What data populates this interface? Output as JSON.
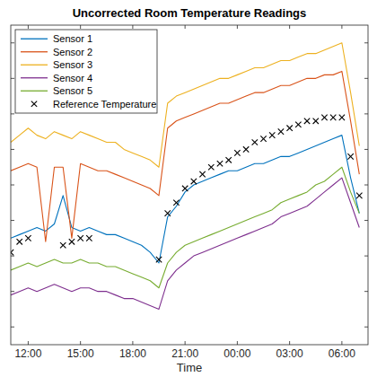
{
  "chart_data": {
    "type": "line",
    "title": "Uncorrected Room Temperature Readings",
    "x_label": "Time",
    "x": [
      11,
      11.5,
      12,
      12.5,
      13,
      13.5,
      14,
      14.5,
      15,
      15.5,
      16,
      16.5,
      17,
      17.5,
      18,
      18.5,
      19,
      19.5,
      20,
      20.5,
      21,
      21.5,
      22,
      22.5,
      23,
      23.5,
      24,
      24.5,
      25,
      25.5,
      26,
      26.5,
      27,
      27.5,
      28,
      28.5,
      29,
      29.5,
      30,
      30.5,
      31
    ],
    "xlim": [
      11,
      31.5
    ],
    "xticks": [
      {
        "value": 12,
        "label": "12:00"
      },
      {
        "value": 15,
        "label": "15:00"
      },
      {
        "value": 18,
        "label": "18:00"
      },
      {
        "value": 21,
        "label": "21:00"
      },
      {
        "value": 24,
        "label": "00:00"
      },
      {
        "value": 27,
        "label": "03:00"
      },
      {
        "value": 30,
        "label": "06:00"
      }
    ],
    "ylim": [
      16.5,
      25.5
    ],
    "yticks": [
      17,
      18,
      19,
      20,
      21,
      22,
      23,
      24,
      25
    ],
    "tick_labels": "x",
    "grid": false,
    "legend": "northwest",
    "series": [
      {
        "name": "Sensor 1",
        "color": "#0072bd",
        "values": [
          19.5,
          19.6,
          19.7,
          19.8,
          19.7,
          19.9,
          20.7,
          19.8,
          19.7,
          19.8,
          19.7,
          19.6,
          19.6,
          19.5,
          19.4,
          19.3,
          19.1,
          18.8,
          20.1,
          20.4,
          20.8,
          21.0,
          21.1,
          21.2,
          21.3,
          21.4,
          21.4,
          21.5,
          21.6,
          21.6,
          21.7,
          21.8,
          21.8,
          21.9,
          22.0,
          22.1,
          22.2,
          22.3,
          22.4,
          21.2,
          20.2
        ]
      },
      {
        "name": "Sensor 2",
        "color": "#d95319",
        "values": [
          21.4,
          21.5,
          21.6,
          21.5,
          19.4,
          21.5,
          21.5,
          19.5,
          21.6,
          21.5,
          21.4,
          21.4,
          21.3,
          21.2,
          21.1,
          21.0,
          20.9,
          20.7,
          22.6,
          22.8,
          22.9,
          23.0,
          23.1,
          23.2,
          23.3,
          23.3,
          23.4,
          23.5,
          23.6,
          23.6,
          23.7,
          23.8,
          23.8,
          23.9,
          24.0,
          24.0,
          24.1,
          24.1,
          24.2,
          22.8,
          21.3
        ]
      },
      {
        "name": "Sensor 3",
        "color": "#edb120",
        "values": [
          22.2,
          22.4,
          22.6,
          22.4,
          22.3,
          22.5,
          22.4,
          22.3,
          22.5,
          22.4,
          22.3,
          22.2,
          22.2,
          22.0,
          21.9,
          21.8,
          21.7,
          21.5,
          23.3,
          23.5,
          23.6,
          23.7,
          23.8,
          23.9,
          24.0,
          24.0,
          24.1,
          24.2,
          24.3,
          24.3,
          24.4,
          24.5,
          24.5,
          24.6,
          24.7,
          24.7,
          24.8,
          24.9,
          25.0,
          23.6,
          22.1
        ]
      },
      {
        "name": "Sensor 4",
        "color": "#7e2f8e",
        "values": [
          17.9,
          18.0,
          18.1,
          18.0,
          18.1,
          18.2,
          18.1,
          18.0,
          18.1,
          18.1,
          18.0,
          18.0,
          17.9,
          17.8,
          17.8,
          17.7,
          17.6,
          17.5,
          18.3,
          18.6,
          18.8,
          19.0,
          19.1,
          19.2,
          19.3,
          19.4,
          19.5,
          19.6,
          19.7,
          19.8,
          19.9,
          20.1,
          20.2,
          20.3,
          20.4,
          20.6,
          20.8,
          21.0,
          21.2,
          20.5,
          19.8
        ]
      },
      {
        "name": "Sensor 5",
        "color": "#77ac30",
        "values": [
          18.6,
          18.7,
          18.8,
          18.7,
          18.8,
          18.9,
          18.8,
          18.8,
          18.9,
          18.8,
          18.8,
          18.7,
          18.7,
          18.6,
          18.5,
          18.4,
          18.3,
          18.1,
          18.8,
          19.1,
          19.3,
          19.4,
          19.5,
          19.6,
          19.7,
          19.8,
          19.9,
          20.0,
          20.1,
          20.2,
          20.3,
          20.5,
          20.6,
          20.7,
          20.8,
          21.0,
          21.1,
          21.3,
          21.5,
          20.8,
          20.2
        ]
      },
      {
        "name": "Reference Temperature",
        "color": "#000000",
        "type": "scatter",
        "marker": "x",
        "values": [
          19.1,
          19.4,
          19.5,
          null,
          null,
          null,
          19.3,
          19.4,
          19.5,
          19.5,
          null,
          null,
          null,
          null,
          null,
          null,
          null,
          18.9,
          20.2,
          20.5,
          20.9,
          21.1,
          21.3,
          21.5,
          21.6,
          21.7,
          21.9,
          22.0,
          22.2,
          22.3,
          22.4,
          22.5,
          22.6,
          22.7,
          22.8,
          22.8,
          22.9,
          22.9,
          22.9,
          21.8,
          20.7
        ]
      }
    ]
  }
}
